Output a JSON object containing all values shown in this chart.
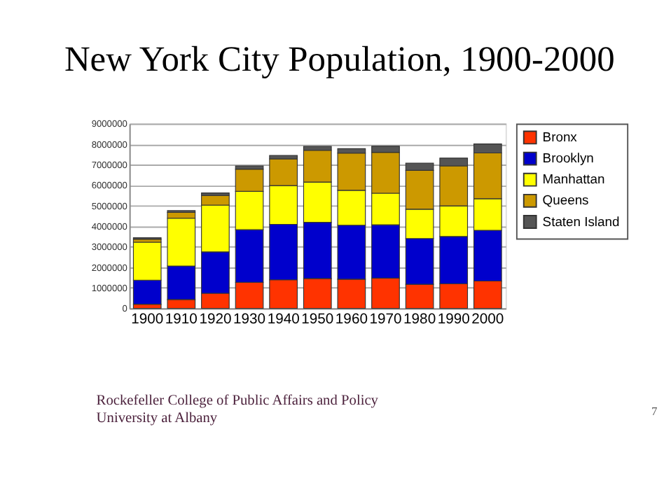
{
  "chart_data": {
    "type": "bar",
    "stacked": true,
    "title": "New York City Population, 1900-2000",
    "categories": [
      "1900",
      "1910",
      "1920",
      "1930",
      "1940",
      "1950",
      "1960",
      "1970",
      "1980",
      "1990",
      "2000"
    ],
    "series": [
      {
        "name": "Bronx",
        "color": "#ff3300",
        "values": [
          200000,
          430000,
          730000,
          1270000,
          1390000,
          1450000,
          1420000,
          1470000,
          1170000,
          1200000,
          1330000
        ]
      },
      {
        "name": "Brooklyn",
        "color": "#0000cc",
        "values": [
          1170000,
          1630000,
          2020000,
          2560000,
          2700000,
          2740000,
          2630000,
          2600000,
          2230000,
          2300000,
          2470000
        ]
      },
      {
        "name": "Manhattan",
        "color": "#ffff00",
        "values": [
          1850000,
          2330000,
          2280000,
          1870000,
          1890000,
          1960000,
          1700000,
          1540000,
          1430000,
          1490000,
          1540000
        ]
      },
      {
        "name": "Queens",
        "color": "#cc9900",
        "values": [
          150000,
          280000,
          470000,
          1080000,
          1300000,
          1550000,
          1810000,
          1990000,
          1890000,
          1950000,
          2230000
        ]
      },
      {
        "name": "Staten Island",
        "color": "#555555",
        "values": [
          70000,
          90000,
          120000,
          160000,
          170000,
          190000,
          220000,
          300000,
          350000,
          380000,
          440000
        ]
      }
    ],
    "ylim": [
      0,
      9000000
    ],
    "yticks": [
      0,
      1000000,
      2000000,
      3000000,
      4000000,
      5000000,
      6000000,
      7000000,
      8000000,
      9000000
    ],
    "grid": "y",
    "legend": "right",
    "annotations": [
      "Rockefeller College of Public Affairs and Policy",
      "University at Albany",
      "7"
    ]
  }
}
